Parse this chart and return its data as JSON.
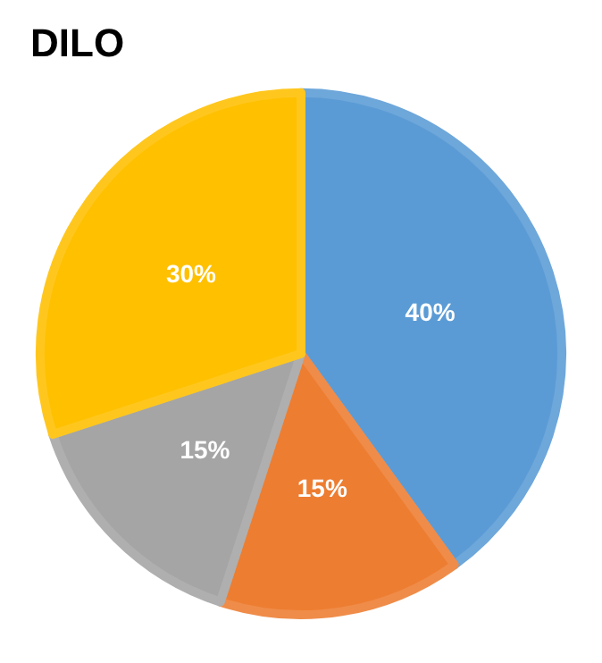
{
  "chart_data": {
    "type": "pie",
    "title": "DILO",
    "categories": [
      null,
      null,
      null,
      null
    ],
    "values": [
      40,
      15,
      15,
      30
    ],
    "value_labels": [
      "40%",
      "15%",
      "15%",
      "30%"
    ],
    "colors": [
      "#5b9bd5",
      "#ed7d31",
      "#a5a5a5",
      "#ffc000"
    ]
  }
}
